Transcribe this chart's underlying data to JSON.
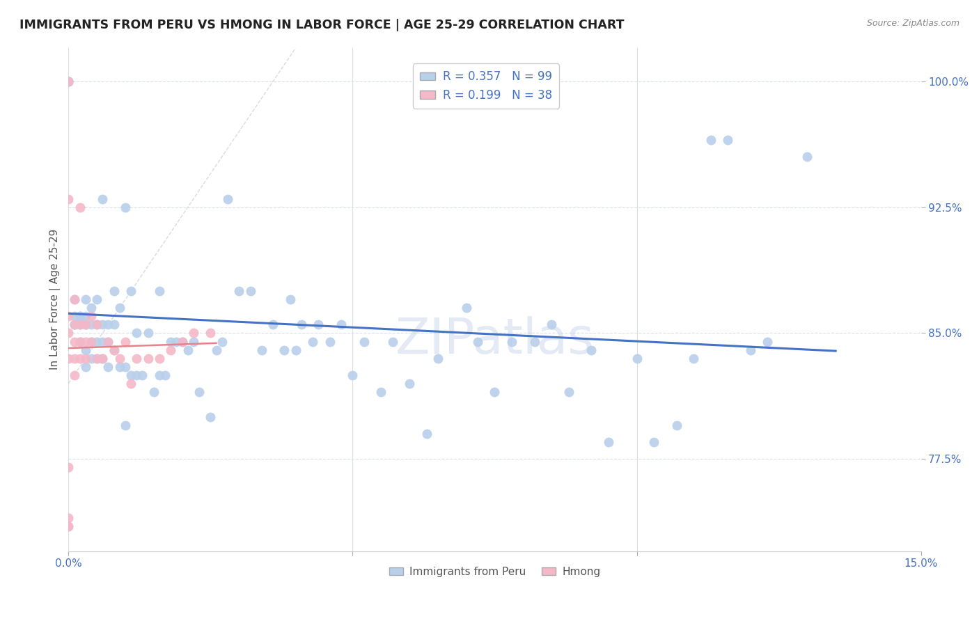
{
  "title": "IMMIGRANTS FROM PERU VS HMONG IN LABOR FORCE | AGE 25-29 CORRELATION CHART",
  "source": "Source: ZipAtlas.com",
  "ylabel": "In Labor Force | Age 25-29",
  "xlim": [
    0.0,
    0.15
  ],
  "ylim": [
    0.72,
    1.02
  ],
  "yticks": [
    0.775,
    0.85,
    0.925,
    1.0
  ],
  "yticklabels": [
    "77.5%",
    "85.0%",
    "92.5%",
    "100.0%"
  ],
  "xtick_positions": [
    0.0,
    0.05,
    0.1,
    0.15
  ],
  "xticklabels": [
    "0.0%",
    "",
    "",
    "15.0%"
  ],
  "legend_labels": [
    "Immigrants from Peru",
    "Hmong"
  ],
  "peru_color": "#b8d0ea",
  "hmong_color": "#f4b8c8",
  "peru_line_color": "#4472c4",
  "hmong_line_color": "#e8828a",
  "watermark": "ZIPatlas",
  "R_peru": 0.357,
  "N_peru": 99,
  "R_hmong": 0.199,
  "N_hmong": 38,
  "peru_x": [
    0.001,
    0.001,
    0.001,
    0.001,
    0.002,
    0.002,
    0.002,
    0.002,
    0.002,
    0.003,
    0.003,
    0.003,
    0.003,
    0.003,
    0.004,
    0.004,
    0.004,
    0.004,
    0.005,
    0.005,
    0.005,
    0.005,
    0.006,
    0.006,
    0.006,
    0.006,
    0.007,
    0.007,
    0.007,
    0.008,
    0.008,
    0.008,
    0.009,
    0.009,
    0.01,
    0.01,
    0.01,
    0.011,
    0.011,
    0.012,
    0.012,
    0.013,
    0.014,
    0.015,
    0.016,
    0.016,
    0.017,
    0.018,
    0.019,
    0.02,
    0.021,
    0.022,
    0.023,
    0.025,
    0.026,
    0.027,
    0.028,
    0.03,
    0.032,
    0.034,
    0.036,
    0.038,
    0.039,
    0.04,
    0.041,
    0.043,
    0.044,
    0.046,
    0.048,
    0.05,
    0.052,
    0.055,
    0.057,
    0.06,
    0.063,
    0.065,
    0.07,
    0.072,
    0.075,
    0.078,
    0.082,
    0.085,
    0.088,
    0.092,
    0.095,
    0.1,
    0.103,
    0.107,
    0.11,
    0.113,
    0.116,
    0.12,
    0.123,
    0.0,
    0.0,
    0.0,
    0.0,
    0.0,
    0.13
  ],
  "peru_y": [
    0.855,
    0.855,
    0.86,
    0.87,
    0.845,
    0.855,
    0.855,
    0.86,
    0.86,
    0.83,
    0.84,
    0.855,
    0.86,
    0.87,
    0.835,
    0.845,
    0.855,
    0.865,
    0.835,
    0.845,
    0.855,
    0.87,
    0.835,
    0.845,
    0.855,
    0.93,
    0.83,
    0.845,
    0.855,
    0.84,
    0.855,
    0.875,
    0.83,
    0.865,
    0.795,
    0.83,
    0.925,
    0.825,
    0.875,
    0.825,
    0.85,
    0.825,
    0.85,
    0.815,
    0.825,
    0.875,
    0.825,
    0.845,
    0.845,
    0.845,
    0.84,
    0.845,
    0.815,
    0.8,
    0.84,
    0.845,
    0.93,
    0.875,
    0.875,
    0.84,
    0.855,
    0.84,
    0.87,
    0.84,
    0.855,
    0.845,
    0.855,
    0.845,
    0.855,
    0.825,
    0.845,
    0.815,
    0.845,
    0.82,
    0.79,
    0.835,
    0.865,
    0.845,
    0.815,
    0.845,
    0.845,
    0.855,
    0.815,
    0.84,
    0.785,
    0.835,
    0.785,
    0.795,
    0.835,
    0.965,
    0.965,
    0.84,
    0.845,
    1.0,
    1.0,
    1.0,
    1.0,
    1.0,
    0.955
  ],
  "hmong_x": [
    0.0,
    0.0,
    0.0,
    0.0,
    0.0,
    0.0,
    0.0,
    0.001,
    0.001,
    0.001,
    0.001,
    0.001,
    0.002,
    0.002,
    0.002,
    0.002,
    0.003,
    0.003,
    0.003,
    0.004,
    0.004,
    0.005,
    0.005,
    0.006,
    0.007,
    0.008,
    0.009,
    0.01,
    0.011,
    0.012,
    0.014,
    0.016,
    0.018,
    0.02,
    0.022,
    0.025,
    0.0,
    0.0
  ],
  "hmong_y": [
    0.74,
    0.77,
    0.835,
    0.85,
    0.86,
    0.93,
    1.0,
    0.825,
    0.835,
    0.845,
    0.855,
    0.87,
    0.835,
    0.845,
    0.855,
    0.925,
    0.835,
    0.845,
    0.855,
    0.845,
    0.86,
    0.835,
    0.855,
    0.835,
    0.845,
    0.84,
    0.835,
    0.845,
    0.82,
    0.835,
    0.835,
    0.835,
    0.84,
    0.845,
    0.85,
    0.85,
    0.735,
    0.735
  ]
}
